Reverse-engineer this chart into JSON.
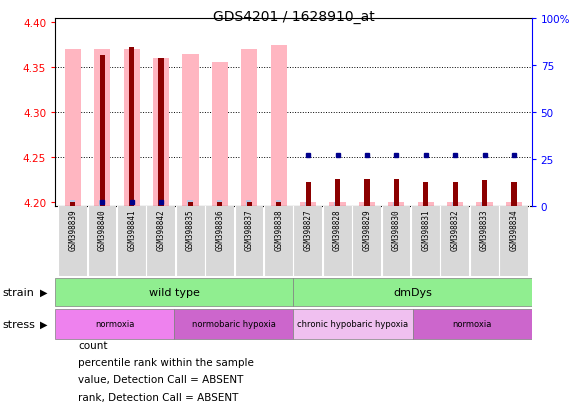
{
  "title": "GDS4201 / 1628910_at",
  "samples": [
    "GSM398839",
    "GSM398840",
    "GSM398841",
    "GSM398842",
    "GSM398835",
    "GSM398836",
    "GSM398837",
    "GSM398838",
    "GSM398827",
    "GSM398828",
    "GSM398829",
    "GSM398830",
    "GSM398831",
    "GSM398832",
    "GSM398833",
    "GSM398834"
  ],
  "ylim_left": [
    4.195,
    4.405
  ],
  "ylim_right": [
    0,
    100
  ],
  "yticks_left": [
    4.2,
    4.25,
    4.3,
    4.35,
    4.4
  ],
  "yticks_right": [
    0,
    25,
    50,
    75,
    100
  ],
  "pink_bar_heights": [
    4.37,
    4.37,
    4.37,
    4.36,
    4.365,
    4.355,
    4.37,
    4.375,
    4.2,
    4.2,
    4.2,
    4.2,
    4.2,
    4.2,
    4.2,
    4.2
  ],
  "red_bar_heights": [
    4.2,
    4.363,
    4.372,
    4.36,
    4.2,
    4.2,
    4.2,
    4.2,
    4.222,
    4.225,
    4.225,
    4.225,
    4.222,
    4.222,
    4.224,
    4.222
  ],
  "light_blue_bar_heights": [
    4.202,
    4.202,
    4.202,
    4.202,
    4.202,
    4.202,
    4.202,
    4.202,
    4.2,
    4.2,
    4.2,
    4.2,
    4.2,
    4.2,
    4.2,
    4.2
  ],
  "blue_square_present": [
    false,
    true,
    true,
    true,
    false,
    false,
    false,
    false,
    true,
    true,
    true,
    true,
    true,
    true,
    true,
    true
  ],
  "blue_sq_right_y": [
    0,
    2,
    2,
    2,
    0,
    0,
    0,
    0,
    27,
    27,
    27,
    27,
    27,
    27,
    27,
    27
  ],
  "pink_color": "#ffb6c1",
  "red_color": "#8b0000",
  "blue_color": "#00008b",
  "light_blue_color": "#b0c8e8",
  "green_color": "#90ee90",
  "stress_colors": [
    "#ee82ee",
    "#cc66cc",
    "#f0c0f0",
    "#cc66cc"
  ],
  "stress_labels": [
    "normoxia",
    "normobaric hypoxia",
    "chronic hypobaric hypoxia",
    "normoxia"
  ],
  "stress_ranges": [
    [
      0,
      4
    ],
    [
      4,
      8
    ],
    [
      8,
      12
    ],
    [
      12,
      16
    ]
  ],
  "strain_labels": [
    "wild type",
    "dmDys"
  ],
  "strain_ranges": [
    [
      0,
      8
    ],
    [
      8,
      16
    ]
  ]
}
